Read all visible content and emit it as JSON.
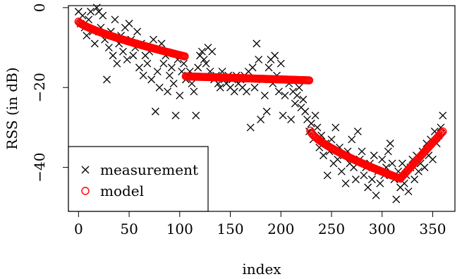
{
  "chart_data": {
    "type": "scatter",
    "xlabel": "index",
    "ylabel": "RSS (in dB)",
    "xlim": [
      -10,
      372
    ],
    "ylim": [
      -51,
      0.5
    ],
    "x_ticks": [
      0,
      50,
      100,
      150,
      200,
      250,
      300,
      350
    ],
    "y_ticks": [
      0,
      -20,
      -40
    ],
    "grid": false,
    "legend_position": "bottom-left",
    "series": [
      {
        "name": "measurement",
        "marker": "x",
        "color": "#000000",
        "points": [
          [
            0,
            -1
          ],
          [
            2,
            -4
          ],
          [
            4,
            -2
          ],
          [
            6,
            -5
          ],
          [
            8,
            -7
          ],
          [
            10,
            -3
          ],
          [
            12,
            -1
          ],
          [
            14,
            -6
          ],
          [
            16,
            -9
          ],
          [
            18,
            0
          ],
          [
            20,
            -1
          ],
          [
            22,
            -5
          ],
          [
            24,
            -2
          ],
          [
            26,
            -8
          ],
          [
            28,
            -18
          ],
          [
            30,
            -10
          ],
          [
            32,
            -6
          ],
          [
            34,
            -12
          ],
          [
            36,
            -3
          ],
          [
            38,
            -14
          ],
          [
            40,
            -9
          ],
          [
            42,
            -7
          ],
          [
            44,
            -11
          ],
          [
            46,
            -5
          ],
          [
            48,
            -13
          ],
          [
            50,
            -4
          ],
          [
            52,
            -8
          ],
          [
            54,
            -12
          ],
          [
            56,
            -10
          ],
          [
            58,
            -6
          ],
          [
            60,
            -15
          ],
          [
            62,
            -9
          ],
          [
            64,
            -17
          ],
          [
            66,
            -12
          ],
          [
            68,
            -14
          ],
          [
            70,
            -11
          ],
          [
            72,
            -18
          ],
          [
            74,
            -8
          ],
          [
            76,
            -26
          ],
          [
            78,
            -16
          ],
          [
            80,
            -20
          ],
          [
            82,
            -9
          ],
          [
            84,
            -14
          ],
          [
            86,
            -12
          ],
          [
            88,
            -21
          ],
          [
            90,
            -17
          ],
          [
            92,
            -15
          ],
          [
            94,
            -19
          ],
          [
            96,
            -27
          ],
          [
            98,
            -13
          ],
          [
            100,
            -22
          ],
          [
            102,
            -16
          ],
          [
            104,
            -14
          ],
          [
            106,
            -18
          ],
          [
            108,
            -17
          ],
          [
            110,
            -16
          ],
          [
            112,
            -19
          ],
          [
            114,
            -21
          ],
          [
            116,
            -27
          ],
          [
            118,
            -15
          ],
          [
            120,
            -12
          ],
          [
            122,
            -11
          ],
          [
            124,
            -13
          ],
          [
            126,
            -14
          ],
          [
            128,
            -10
          ],
          [
            130,
            -16
          ],
          [
            132,
            -11
          ],
          [
            134,
            -18
          ],
          [
            136,
            -17
          ],
          [
            138,
            -19
          ],
          [
            140,
            -20
          ],
          [
            142,
            -16
          ],
          [
            144,
            -18
          ],
          [
            146,
            -19
          ],
          [
            148,
            -17
          ],
          [
            150,
            -20
          ],
          [
            152,
            -18
          ],
          [
            154,
            -21
          ],
          [
            156,
            -17
          ],
          [
            158,
            -19
          ],
          [
            160,
            -18
          ],
          [
            162,
            -20
          ],
          [
            164,
            -17
          ],
          [
            166,
            -21
          ],
          [
            168,
            -16
          ],
          [
            170,
            -30
          ],
          [
            172,
            -15
          ],
          [
            174,
            -20
          ],
          [
            176,
            -9
          ],
          [
            178,
            -13
          ],
          [
            180,
            -28
          ],
          [
            182,
            -18
          ],
          [
            184,
            -22
          ],
          [
            186,
            -26
          ],
          [
            188,
            -15
          ],
          [
            190,
            -13
          ],
          [
            192,
            -19
          ],
          [
            194,
            -12
          ],
          [
            196,
            -17
          ],
          [
            198,
            -21
          ],
          [
            200,
            -14
          ],
          [
            202,
            -27
          ],
          [
            204,
            -22
          ],
          [
            206,
            -18
          ],
          [
            208,
            -19
          ],
          [
            210,
            -28
          ],
          [
            212,
            -21
          ],
          [
            214,
            -24
          ],
          [
            216,
            -22
          ],
          [
            218,
            -20
          ],
          [
            220,
            -25
          ],
          [
            222,
            -23
          ],
          [
            224,
            -26
          ],
          [
            226,
            -28
          ],
          [
            228,
            -31
          ],
          [
            230,
            -29
          ],
          [
            232,
            -33
          ],
          [
            234,
            -27
          ],
          [
            236,
            -30
          ],
          [
            238,
            -35
          ],
          [
            240,
            -32
          ],
          [
            242,
            -37
          ],
          [
            244,
            -34
          ],
          [
            246,
            -42
          ],
          [
            248,
            -36
          ],
          [
            250,
            -33
          ],
          [
            252,
            -39
          ],
          [
            254,
            -30
          ],
          [
            256,
            -38
          ],
          [
            258,
            -35
          ],
          [
            260,
            -41
          ],
          [
            262,
            -37
          ],
          [
            264,
            -44
          ],
          [
            266,
            -36
          ],
          [
            268,
            -39
          ],
          [
            270,
            -33
          ],
          [
            272,
            -40
          ],
          [
            274,
            -43
          ],
          [
            276,
            -31
          ],
          [
            278,
            -38
          ],
          [
            280,
            -36
          ],
          [
            282,
            -42
          ],
          [
            284,
            -40
          ],
          [
            286,
            -45
          ],
          [
            288,
            -39
          ],
          [
            290,
            -43
          ],
          [
            292,
            -37
          ],
          [
            294,
            -47
          ],
          [
            296,
            -41
          ],
          [
            298,
            -44
          ],
          [
            300,
            -38
          ],
          [
            302,
            -42
          ],
          [
            304,
            -40
          ],
          [
            306,
            -36
          ],
          [
            308,
            -34
          ],
          [
            310,
            -39
          ],
          [
            312,
            -43
          ],
          [
            314,
            -48
          ],
          [
            316,
            -41
          ],
          [
            318,
            -45
          ],
          [
            320,
            -39
          ],
          [
            322,
            -44
          ],
          [
            324,
            -42
          ],
          [
            326,
            -46
          ],
          [
            328,
            -40
          ],
          [
            330,
            -38
          ],
          [
            332,
            -43
          ],
          [
            334,
            -37
          ],
          [
            336,
            -41
          ],
          [
            338,
            -39
          ],
          [
            340,
            -36
          ],
          [
            342,
            -40
          ],
          [
            344,
            -34
          ],
          [
            346,
            -37
          ],
          [
            348,
            -33
          ],
          [
            350,
            -38
          ],
          [
            352,
            -31
          ],
          [
            354,
            -34
          ],
          [
            356,
            -32
          ],
          [
            358,
            -30
          ],
          [
            360,
            -27
          ]
        ]
      },
      {
        "name": "model",
        "marker": "o",
        "color": "#ff0000",
        "segments": [
          {
            "from": 0,
            "to": 105,
            "y_start": -3.5,
            "y_end": -12.2,
            "curve": 0.75
          },
          {
            "from": 106,
            "to": 228,
            "y_start": -17.2,
            "y_end": -18.2,
            "curve": 1.0
          },
          {
            "from": 229,
            "to": 318,
            "y_start": -30.8,
            "y_end": -42.8,
            "curve": 0.7
          },
          {
            "from": 319,
            "to": 360,
            "y_start": -42.5,
            "y_end": -31.0,
            "curve": 1.0
          }
        ]
      }
    ]
  }
}
